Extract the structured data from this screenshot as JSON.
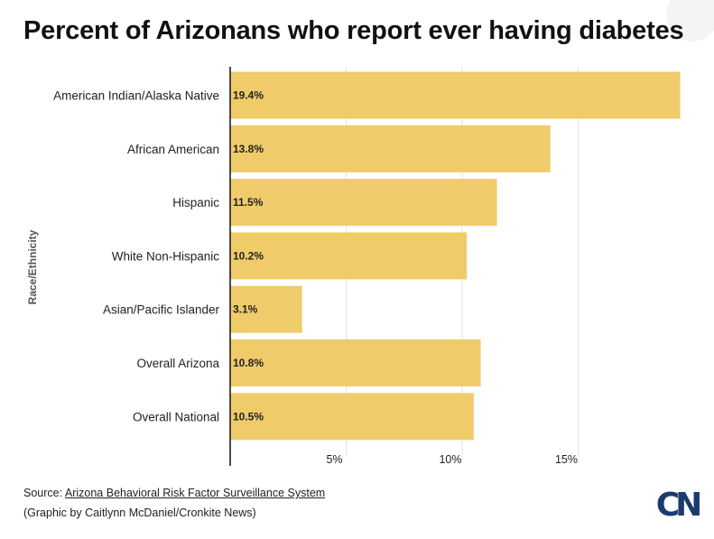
{
  "title": "Percent of Arizonans who report ever having diabetes",
  "source": {
    "prefix": "Source: ",
    "link_text": "Arizona Behavioral Risk Factor Surveillance System"
  },
  "credit": "(Graphic by Caitlynn McDaniel/Cronkite News)",
  "logo": "CN",
  "colors": {
    "bar": "#efcb6a",
    "axis": "#111111",
    "grid": "#e3e3e3",
    "logo": "#1b3b6f"
  },
  "chart_data": {
    "type": "bar",
    "orientation": "horizontal",
    "title": "Percent of Arizonans who report ever having diabetes",
    "xlabel": "",
    "ylabel": "Race/Ethnicity",
    "xlim": [
      0,
      20
    ],
    "grid": true,
    "legend": "none",
    "categories": [
      "American Indian/Alaska Native",
      "African American",
      "Hispanic",
      "White Non-Hispanic",
      "Asian/Pacific Islander",
      "Overall Arizona",
      "Overall National"
    ],
    "values": [
      19.4,
      13.8,
      11.5,
      10.2,
      3.1,
      10.8,
      10.5
    ],
    "data_labels": [
      "19.4%",
      "13.8%",
      "11.5%",
      "10.2%",
      "3.1%",
      "10.8%",
      "10.5%"
    ],
    "ticks": [
      5,
      10,
      15
    ],
    "tick_labels": [
      "5%",
      "10%",
      "15%"
    ]
  }
}
